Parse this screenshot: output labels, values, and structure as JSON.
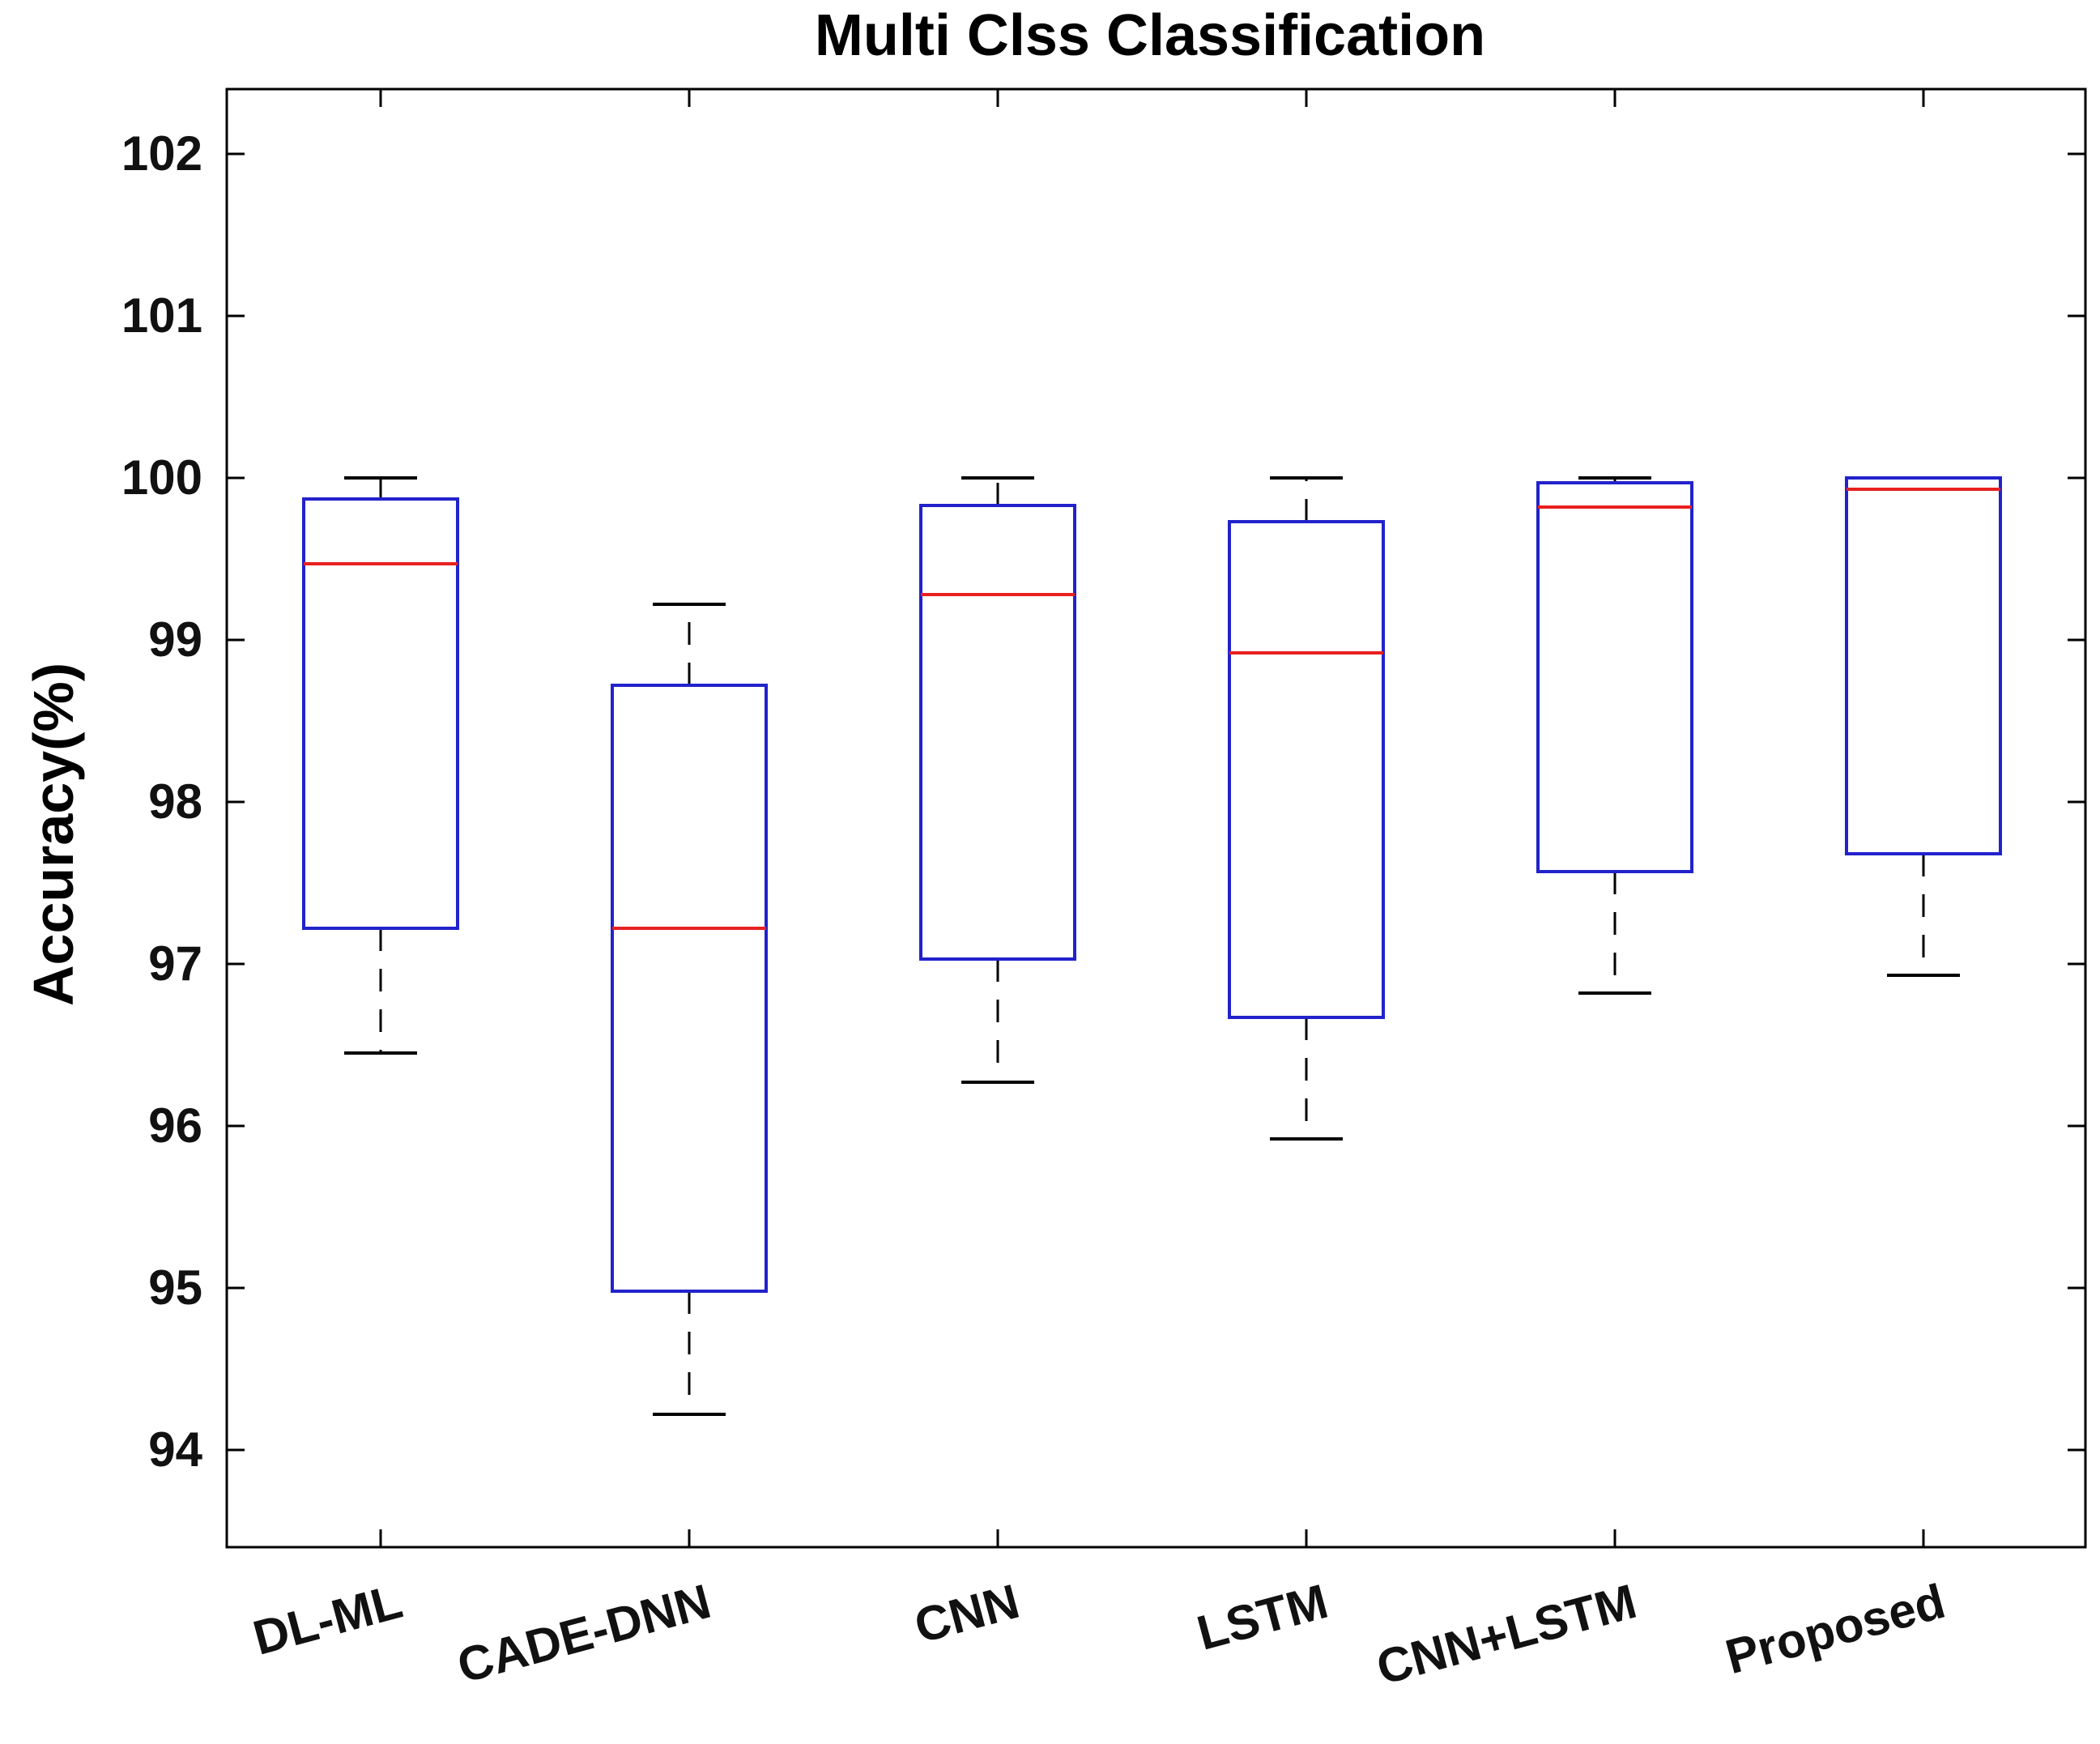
{
  "chart_data": {
    "type": "boxplot",
    "title": "Multi Clss Classification",
    "xlabel": "",
    "ylabel": "Accuracy(%)",
    "ylim": [
      93.4,
      102.4
    ],
    "yticks": [
      "94",
      "95",
      "96",
      "97",
      "98",
      "99",
      "100",
      "101",
      "102"
    ],
    "categories": [
      "DL-ML",
      "CADE-DNN",
      "CNN",
      "LSTM",
      "CNN+LSTM",
      "Proposed"
    ],
    "series": [
      {
        "name": "DL-ML",
        "whisker_low": 96.45,
        "q1": 97.22,
        "median": 99.47,
        "q3": 99.87,
        "whisker_high": 100.0
      },
      {
        "name": "CADE-DNN",
        "whisker_low": 94.22,
        "q1": 94.98,
        "median": 97.22,
        "q3": 98.72,
        "whisker_high": 99.22
      },
      {
        "name": "CNN",
        "whisker_low": 96.27,
        "q1": 97.03,
        "median": 99.28,
        "q3": 99.83,
        "whisker_high": 100.0
      },
      {
        "name": "LSTM",
        "whisker_low": 95.92,
        "q1": 96.67,
        "median": 98.92,
        "q3": 99.73,
        "whisker_high": 100.0
      },
      {
        "name": "CNN+LSTM",
        "whisker_low": 96.82,
        "q1": 97.57,
        "median": 99.82,
        "q3": 99.97,
        "whisker_high": 100.0
      },
      {
        "name": "Proposed",
        "whisker_low": 96.93,
        "q1": 97.68,
        "median": 99.93,
        "q3": 100.0,
        "whisker_high": 100.0
      }
    ],
    "colors": {
      "box": "#2222cc",
      "median": "#e82020",
      "whisker": "#000000",
      "axis": "#000000"
    },
    "grid": false
  }
}
